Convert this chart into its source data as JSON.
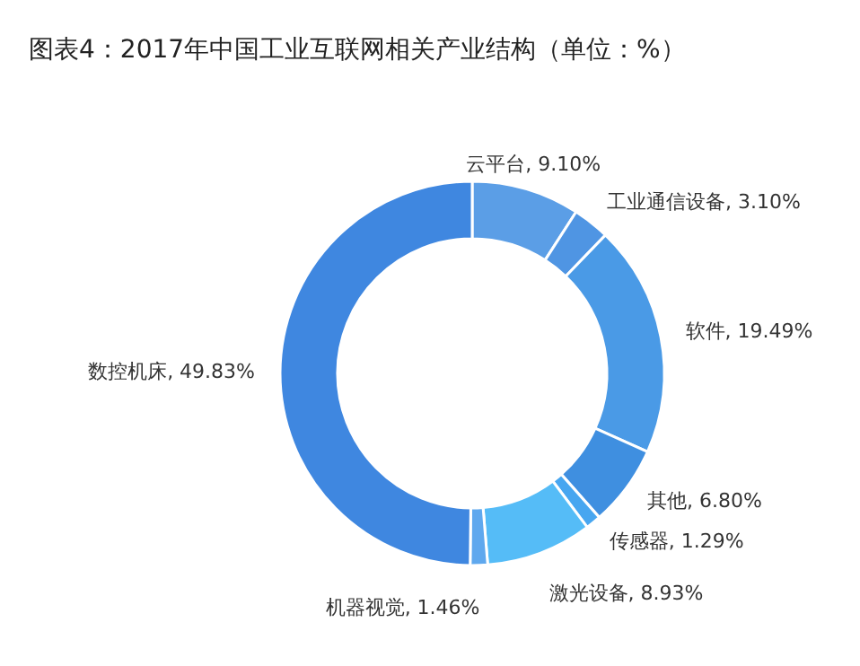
{
  "chart_data": {
    "type": "donut",
    "title": "图表4：2017年中国工业互联网相关产业结构（单位：%）",
    "categories": [
      "云平台",
      "工业通信设备",
      "软件",
      "其他",
      "传感器",
      "激光设备",
      "机器视觉",
      "数控机床"
    ],
    "values": [
      9.1,
      3.1,
      19.49,
      6.8,
      1.29,
      8.93,
      1.46,
      49.83
    ],
    "value_labels": [
      "9.10%",
      "3.10%",
      "19.49%",
      "6.80%",
      "1.29%",
      "8.93%",
      "1.46%",
      "49.83%"
    ],
    "colors": [
      "#5b9ee6",
      "#4f95e3",
      "#4a9ae6",
      "#3f8fe0",
      "#47a6f0",
      "#55bcf7",
      "#5fa8ee",
      "#3f87e0"
    ]
  }
}
